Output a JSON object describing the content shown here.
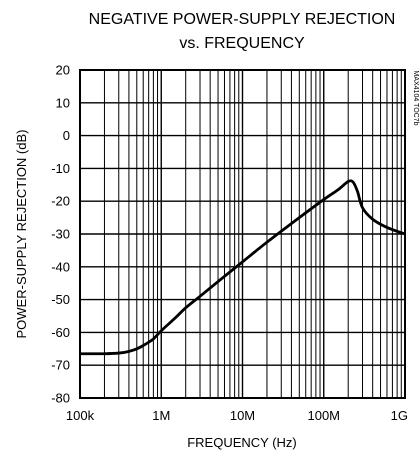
{
  "chart_data": {
    "type": "line",
    "title": "NEGATIVE POWER-SUPPLY REJECTION",
    "subtitle": "vs. FREQUENCY",
    "xlabel": "FREQUENCY (Hz)",
    "ylabel": "POWER-SUPPLY REJECTION (dB)",
    "x_scale": "log",
    "xlim": [
      100000,
      1000000000
    ],
    "ylim": [
      -80,
      20
    ],
    "grid": true,
    "x_tick_values": [
      100000,
      1000000,
      10000000,
      100000000,
      1000000000
    ],
    "x_tick_labels": [
      "100k",
      "1M",
      "10M",
      "100M",
      "1G"
    ],
    "y_ticks": [
      20,
      10,
      0,
      -10,
      -20,
      -30,
      -40,
      -50,
      -60,
      -70,
      -80
    ],
    "y_tick_labels": [
      "20",
      "10",
      "0",
      "-10",
      "-20",
      "-30",
      "-40",
      "-50",
      "-60",
      "-70",
      "-80"
    ],
    "side_code": "MAX4104 TOC7b",
    "series": [
      {
        "x": [
          100000,
          200000,
          300000,
          400000,
          500000,
          600000,
          700000,
          800000,
          1000000,
          1500000,
          2000000,
          3000000,
          5000000,
          10000000,
          20000000,
          50000000,
          100000000,
          150000000,
          200000000,
          230000000,
          260000000,
          300000000,
          400000000,
          600000000,
          1000000000
        ],
        "y": [
          -66.5,
          -66.5,
          -66.3,
          -65.8,
          -65,
          -64,
          -63,
          -62,
          -59.5,
          -55.5,
          -52.5,
          -49,
          -44.5,
          -38.5,
          -32.5,
          -25,
          -19.5,
          -16.5,
          -14,
          -14.2,
          -17,
          -22,
          -25.5,
          -28,
          -30
        ]
      }
    ]
  }
}
